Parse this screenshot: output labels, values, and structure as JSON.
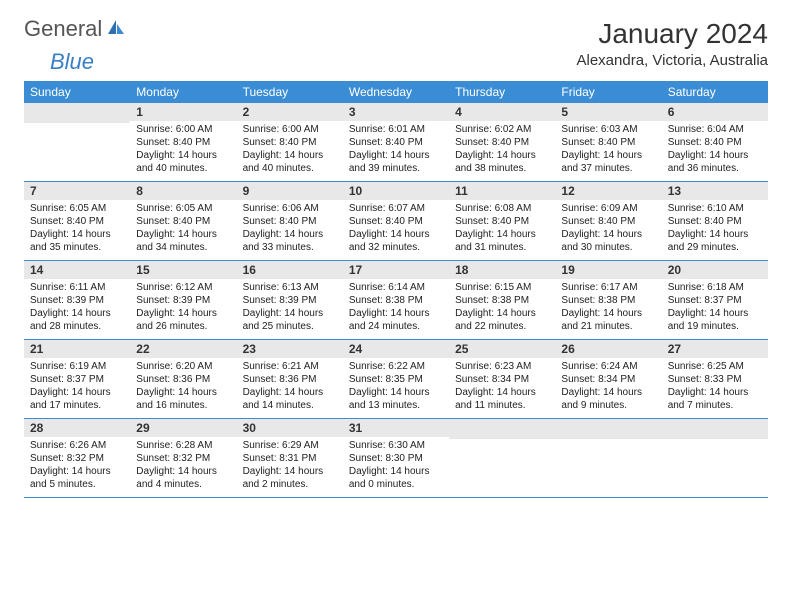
{
  "logo": {
    "word1": "General",
    "word2": "Blue"
  },
  "title": "January 2024",
  "subtitle": "Alexandra, Victoria, Australia",
  "colors": {
    "header_bg": "#3a8dd4",
    "header_fg": "#ffffff",
    "daynum_bg": "#e8e8e8",
    "border": "#3a8dd4"
  },
  "dow": [
    "Sunday",
    "Monday",
    "Tuesday",
    "Wednesday",
    "Thursday",
    "Friday",
    "Saturday"
  ],
  "weeks": [
    [
      null,
      {
        "n": "1",
        "sr": "Sunrise: 6:00 AM",
        "ss": "Sunset: 8:40 PM",
        "dl1": "Daylight: 14 hours",
        "dl2": "and 40 minutes."
      },
      {
        "n": "2",
        "sr": "Sunrise: 6:00 AM",
        "ss": "Sunset: 8:40 PM",
        "dl1": "Daylight: 14 hours",
        "dl2": "and 40 minutes."
      },
      {
        "n": "3",
        "sr": "Sunrise: 6:01 AM",
        "ss": "Sunset: 8:40 PM",
        "dl1": "Daylight: 14 hours",
        "dl2": "and 39 minutes."
      },
      {
        "n": "4",
        "sr": "Sunrise: 6:02 AM",
        "ss": "Sunset: 8:40 PM",
        "dl1": "Daylight: 14 hours",
        "dl2": "and 38 minutes."
      },
      {
        "n": "5",
        "sr": "Sunrise: 6:03 AM",
        "ss": "Sunset: 8:40 PM",
        "dl1": "Daylight: 14 hours",
        "dl2": "and 37 minutes."
      },
      {
        "n": "6",
        "sr": "Sunrise: 6:04 AM",
        "ss": "Sunset: 8:40 PM",
        "dl1": "Daylight: 14 hours",
        "dl2": "and 36 minutes."
      }
    ],
    [
      {
        "n": "7",
        "sr": "Sunrise: 6:05 AM",
        "ss": "Sunset: 8:40 PM",
        "dl1": "Daylight: 14 hours",
        "dl2": "and 35 minutes."
      },
      {
        "n": "8",
        "sr": "Sunrise: 6:05 AM",
        "ss": "Sunset: 8:40 PM",
        "dl1": "Daylight: 14 hours",
        "dl2": "and 34 minutes."
      },
      {
        "n": "9",
        "sr": "Sunrise: 6:06 AM",
        "ss": "Sunset: 8:40 PM",
        "dl1": "Daylight: 14 hours",
        "dl2": "and 33 minutes."
      },
      {
        "n": "10",
        "sr": "Sunrise: 6:07 AM",
        "ss": "Sunset: 8:40 PM",
        "dl1": "Daylight: 14 hours",
        "dl2": "and 32 minutes."
      },
      {
        "n": "11",
        "sr": "Sunrise: 6:08 AM",
        "ss": "Sunset: 8:40 PM",
        "dl1": "Daylight: 14 hours",
        "dl2": "and 31 minutes."
      },
      {
        "n": "12",
        "sr": "Sunrise: 6:09 AM",
        "ss": "Sunset: 8:40 PM",
        "dl1": "Daylight: 14 hours",
        "dl2": "and 30 minutes."
      },
      {
        "n": "13",
        "sr": "Sunrise: 6:10 AM",
        "ss": "Sunset: 8:40 PM",
        "dl1": "Daylight: 14 hours",
        "dl2": "and 29 minutes."
      }
    ],
    [
      {
        "n": "14",
        "sr": "Sunrise: 6:11 AM",
        "ss": "Sunset: 8:39 PM",
        "dl1": "Daylight: 14 hours",
        "dl2": "and 28 minutes."
      },
      {
        "n": "15",
        "sr": "Sunrise: 6:12 AM",
        "ss": "Sunset: 8:39 PM",
        "dl1": "Daylight: 14 hours",
        "dl2": "and 26 minutes."
      },
      {
        "n": "16",
        "sr": "Sunrise: 6:13 AM",
        "ss": "Sunset: 8:39 PM",
        "dl1": "Daylight: 14 hours",
        "dl2": "and 25 minutes."
      },
      {
        "n": "17",
        "sr": "Sunrise: 6:14 AM",
        "ss": "Sunset: 8:38 PM",
        "dl1": "Daylight: 14 hours",
        "dl2": "and 24 minutes."
      },
      {
        "n": "18",
        "sr": "Sunrise: 6:15 AM",
        "ss": "Sunset: 8:38 PM",
        "dl1": "Daylight: 14 hours",
        "dl2": "and 22 minutes."
      },
      {
        "n": "19",
        "sr": "Sunrise: 6:17 AM",
        "ss": "Sunset: 8:38 PM",
        "dl1": "Daylight: 14 hours",
        "dl2": "and 21 minutes."
      },
      {
        "n": "20",
        "sr": "Sunrise: 6:18 AM",
        "ss": "Sunset: 8:37 PM",
        "dl1": "Daylight: 14 hours",
        "dl2": "and 19 minutes."
      }
    ],
    [
      {
        "n": "21",
        "sr": "Sunrise: 6:19 AM",
        "ss": "Sunset: 8:37 PM",
        "dl1": "Daylight: 14 hours",
        "dl2": "and 17 minutes."
      },
      {
        "n": "22",
        "sr": "Sunrise: 6:20 AM",
        "ss": "Sunset: 8:36 PM",
        "dl1": "Daylight: 14 hours",
        "dl2": "and 16 minutes."
      },
      {
        "n": "23",
        "sr": "Sunrise: 6:21 AM",
        "ss": "Sunset: 8:36 PM",
        "dl1": "Daylight: 14 hours",
        "dl2": "and 14 minutes."
      },
      {
        "n": "24",
        "sr": "Sunrise: 6:22 AM",
        "ss": "Sunset: 8:35 PM",
        "dl1": "Daylight: 14 hours",
        "dl2": "and 13 minutes."
      },
      {
        "n": "25",
        "sr": "Sunrise: 6:23 AM",
        "ss": "Sunset: 8:34 PM",
        "dl1": "Daylight: 14 hours",
        "dl2": "and 11 minutes."
      },
      {
        "n": "26",
        "sr": "Sunrise: 6:24 AM",
        "ss": "Sunset: 8:34 PM",
        "dl1": "Daylight: 14 hours",
        "dl2": "and 9 minutes."
      },
      {
        "n": "27",
        "sr": "Sunrise: 6:25 AM",
        "ss": "Sunset: 8:33 PM",
        "dl1": "Daylight: 14 hours",
        "dl2": "and 7 minutes."
      }
    ],
    [
      {
        "n": "28",
        "sr": "Sunrise: 6:26 AM",
        "ss": "Sunset: 8:32 PM",
        "dl1": "Daylight: 14 hours",
        "dl2": "and 5 minutes."
      },
      {
        "n": "29",
        "sr": "Sunrise: 6:28 AM",
        "ss": "Sunset: 8:32 PM",
        "dl1": "Daylight: 14 hours",
        "dl2": "and 4 minutes."
      },
      {
        "n": "30",
        "sr": "Sunrise: 6:29 AM",
        "ss": "Sunset: 8:31 PM",
        "dl1": "Daylight: 14 hours",
        "dl2": "and 2 minutes."
      },
      {
        "n": "31",
        "sr": "Sunrise: 6:30 AM",
        "ss": "Sunset: 8:30 PM",
        "dl1": "Daylight: 14 hours",
        "dl2": "and 0 minutes."
      },
      null,
      null,
      null
    ]
  ]
}
